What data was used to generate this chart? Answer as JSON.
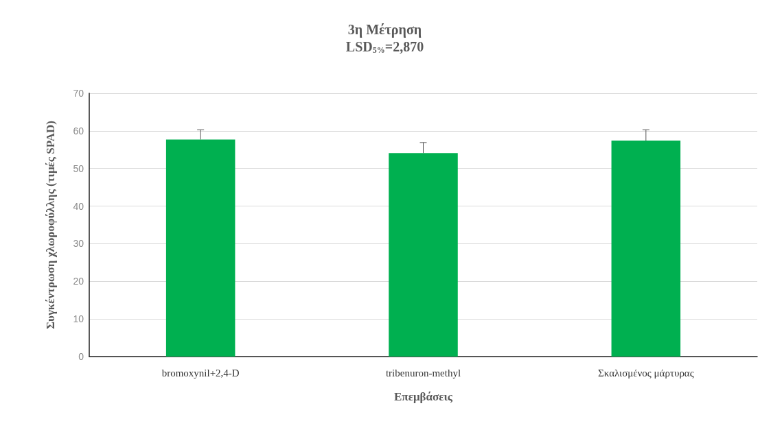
{
  "chart_data": {
    "type": "bar",
    "title": "3η Μέτρηση",
    "subtitle": "LSD$_{5%}$=2,870",
    "xlabel": "Επεμβάσεις",
    "ylabel": "Συγκέντρωση χλωροφύλλης (τιμές SPAD)",
    "categories": [
      "bromoxynil+2,4-D",
      "tribenuron-methyl",
      "Σκαλισμένος μάρτυρας"
    ],
    "values": [
      57.7,
      54.1,
      57.4
    ],
    "errors": [
      [
        57.7,
        60.3
      ],
      [
        54.1,
        56.9
      ],
      [
        57.4,
        60.3
      ]
    ],
    "color": "#00b050",
    "ylim": [
      0,
      70
    ],
    "yticks": [
      0,
      10,
      20,
      30,
      40,
      50,
      60,
      70
    ],
    "grid": "y"
  }
}
